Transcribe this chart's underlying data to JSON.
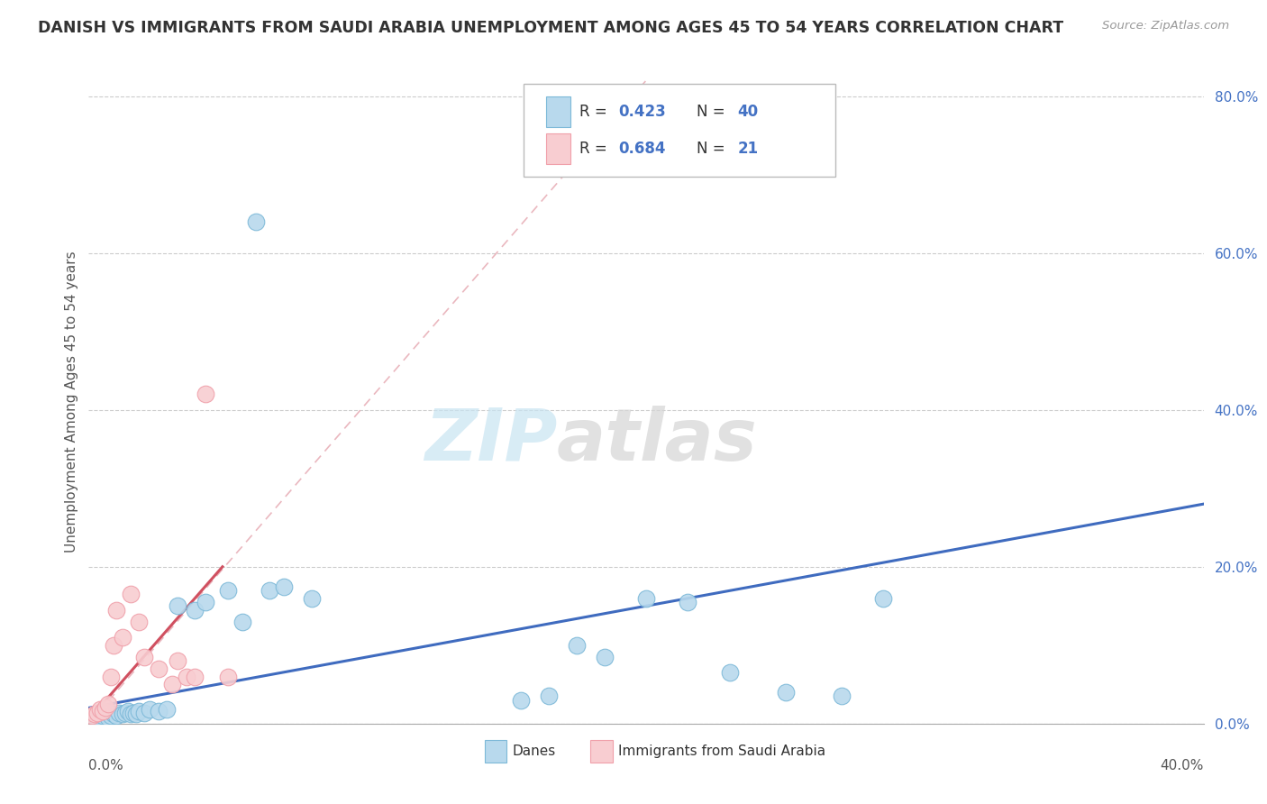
{
  "title": "DANISH VS IMMIGRANTS FROM SAUDI ARABIA UNEMPLOYMENT AMONG AGES 45 TO 54 YEARS CORRELATION CHART",
  "source": "Source: ZipAtlas.com",
  "ylabel": "Unemployment Among Ages 45 to 54 years",
  "xlim": [
    0.0,
    0.4
  ],
  "ylim": [
    0.0,
    0.82
  ],
  "yticks": [
    0.0,
    0.2,
    0.4,
    0.6,
    0.8
  ],
  "ytick_labels": [
    "0.0%",
    "20.0%",
    "40.0%",
    "60.0%",
    "80.0%"
  ],
  "watermark_zip": "ZIP",
  "watermark_atlas": "atlas",
  "blue_color": "#7db9d8",
  "blue_fill": "#b8d9ed",
  "pink_color": "#f0a0aa",
  "pink_fill": "#f8cdd1",
  "trend_blue": "#3f6bbf",
  "trend_pink": "#d05060",
  "ref_line_color": "#e8b0b8",
  "danes_x": [
    0.002,
    0.003,
    0.004,
    0.005,
    0.006,
    0.007,
    0.008,
    0.009,
    0.01,
    0.011,
    0.012,
    0.013,
    0.014,
    0.015,
    0.016,
    0.017,
    0.018,
    0.02,
    0.022,
    0.025,
    0.028,
    0.032,
    0.038,
    0.042,
    0.05,
    0.055,
    0.06,
    0.065,
    0.07,
    0.08,
    0.155,
    0.165,
    0.175,
    0.185,
    0.2,
    0.215,
    0.23,
    0.25,
    0.27,
    0.285
  ],
  "danes_y": [
    0.01,
    0.008,
    0.012,
    0.01,
    0.012,
    0.008,
    0.01,
    0.012,
    0.01,
    0.014,
    0.012,
    0.014,
    0.016,
    0.012,
    0.014,
    0.012,
    0.016,
    0.014,
    0.018,
    0.016,
    0.018,
    0.15,
    0.145,
    0.155,
    0.17,
    0.13,
    0.64,
    0.17,
    0.175,
    0.16,
    0.03,
    0.035,
    0.1,
    0.085,
    0.16,
    0.155,
    0.065,
    0.04,
    0.035,
    0.16
  ],
  "saudi_x": [
    0.001,
    0.002,
    0.003,
    0.004,
    0.005,
    0.006,
    0.007,
    0.008,
    0.009,
    0.01,
    0.012,
    0.015,
    0.018,
    0.02,
    0.025,
    0.03,
    0.032,
    0.035,
    0.038,
    0.042,
    0.05
  ],
  "saudi_y": [
    0.01,
    0.012,
    0.014,
    0.018,
    0.016,
    0.02,
    0.025,
    0.06,
    0.1,
    0.145,
    0.11,
    0.165,
    0.13,
    0.085,
    0.07,
    0.05,
    0.08,
    0.06,
    0.06,
    0.42,
    0.06
  ]
}
